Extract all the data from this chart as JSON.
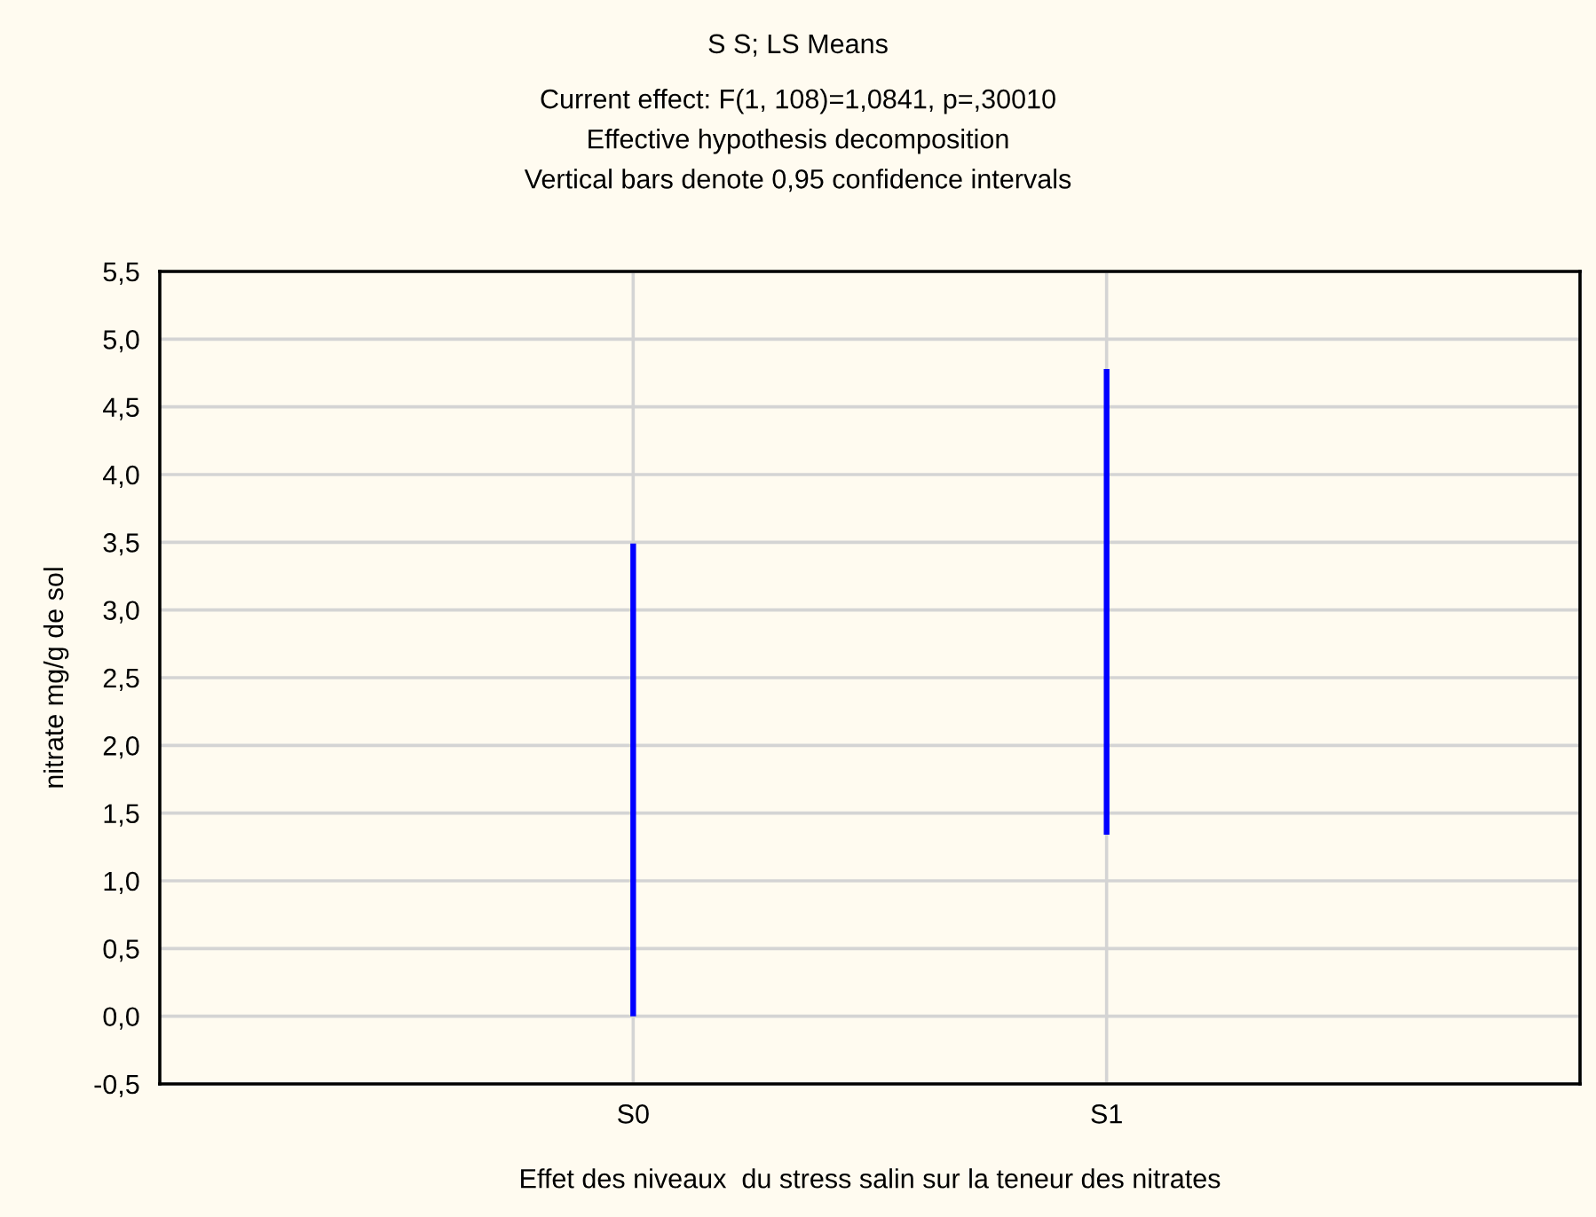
{
  "chart_data": {
    "type": "bar",
    "title": "S S; LS Means",
    "subtitle": "Current effect: F(1, 108)=1,0841, p=,30010\nEffective hypothesis decomposition\nVertical bars denote 0,95 confidence intervals",
    "xlabel": "Effet des niveaux  du stress salin sur la teneur des nitrates",
    "ylabel": "nitrate mg/g de sol",
    "categories": [
      "S0",
      "S1"
    ],
    "base": [
      0.0,
      1.34
    ],
    "values": [
      3.49,
      3.44
    ],
    "color": "#0000ff",
    "ylim": [
      -0.5,
      5.5
    ],
    "yticks": [
      {
        "value": -0.5,
        "label": "-0,5"
      },
      {
        "value": 0.0,
        "label": "0,0"
      },
      {
        "value": 0.5,
        "label": "0,5"
      },
      {
        "value": 1.0,
        "label": "1,0"
      },
      {
        "value": 1.5,
        "label": "1,5"
      },
      {
        "value": 2.0,
        "label": "2,0"
      },
      {
        "value": 2.5,
        "label": "2,5"
      },
      {
        "value": 3.0,
        "label": "3,0"
      },
      {
        "value": 3.5,
        "label": "3,5"
      },
      {
        "value": 4.0,
        "label": "4,0"
      },
      {
        "value": 4.5,
        "label": "4,5"
      },
      {
        "value": 5.0,
        "label": "5,0"
      },
      {
        "value": 5.5,
        "label": "5,5"
      }
    ],
    "grid": true
  }
}
